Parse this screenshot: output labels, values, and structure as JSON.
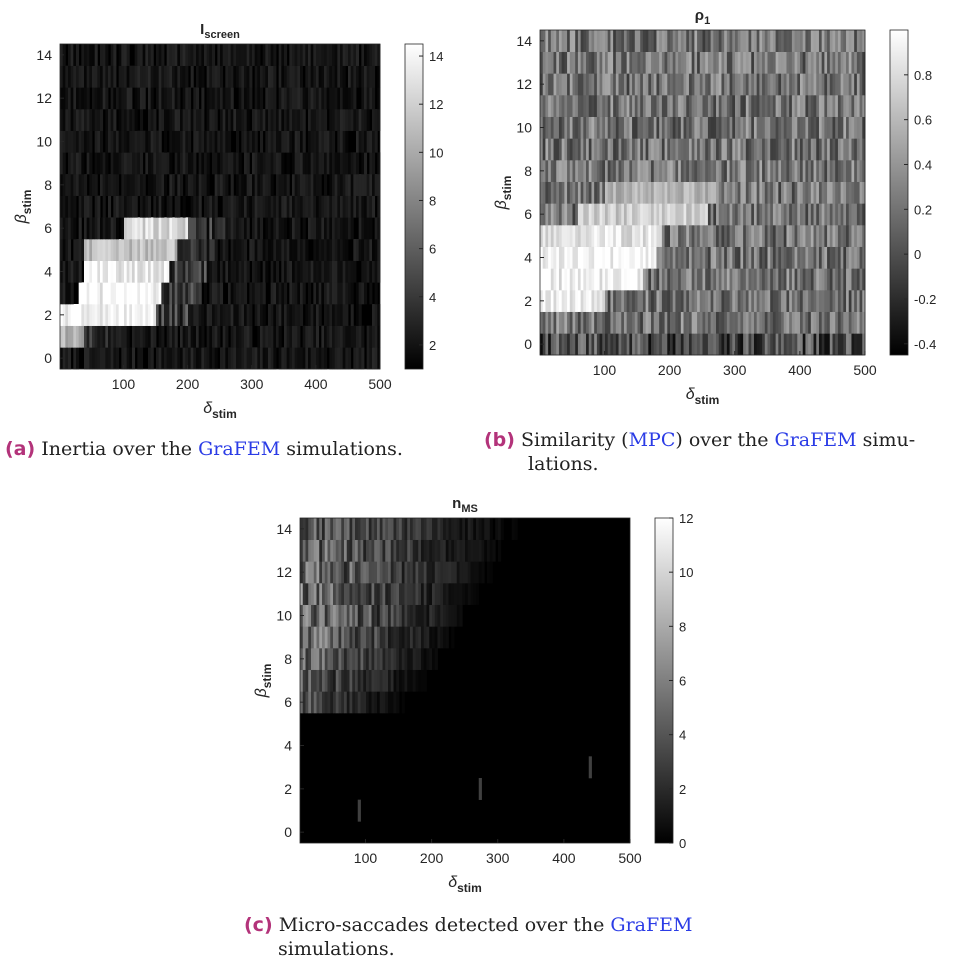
{
  "chart_data": [
    {
      "id": "a",
      "type": "heatmap",
      "title": "I",
      "title_sub": "screen",
      "xlabel": "δ",
      "xlabel_sub": "stim",
      "ylabel": "β",
      "ylabel_sub": "stim",
      "xlim": [
        1,
        500
      ],
      "ylim": [
        -0.5,
        14.5
      ],
      "xticks": [
        100,
        200,
        300,
        400,
        500
      ],
      "yticks": [
        0,
        2,
        4,
        6,
        8,
        10,
        12,
        14
      ],
      "colorbar": {
        "min": 1,
        "max": 14.5,
        "ticks": [
          2,
          4,
          6,
          8,
          10,
          12,
          14
        ],
        "tick_labels": [
          "2",
          "4",
          "6",
          "8",
          "10",
          "12",
          "14"
        ]
      },
      "colormap": "gray",
      "rows": 15,
      "cols": 120,
      "bright_region": [
        {
          "row": 1,
          "from": 1,
          "to": 40,
          "level": 0.7
        },
        {
          "row": 2,
          "from": 1,
          "to": 150,
          "level": 0.97
        },
        {
          "row": 3,
          "from": 30,
          "to": 160,
          "level": 0.97
        },
        {
          "row": 4,
          "from": 40,
          "to": 170,
          "level": 0.95
        },
        {
          "row": 5,
          "from": 40,
          "to": 185,
          "level": 0.75
        },
        {
          "row": 6,
          "from": 100,
          "to": 200,
          "level": 0.85
        }
      ]
    },
    {
      "id": "b",
      "type": "heatmap",
      "title": "ρ",
      "title_sub": "1",
      "xlabel": "δ",
      "xlabel_sub": "stim",
      "ylabel": "β",
      "ylabel_sub": "stim",
      "xlim": [
        1,
        500
      ],
      "ylim": [
        -0.5,
        14.5
      ],
      "xticks": [
        100,
        200,
        300,
        400,
        500
      ],
      "yticks": [
        0,
        2,
        4,
        6,
        8,
        10,
        12,
        14
      ],
      "colorbar": {
        "min": -0.45,
        "max": 1.0,
        "ticks": [
          -0.4,
          -0.2,
          0,
          0.2,
          0.4,
          0.6,
          0.8
        ],
        "tick_labels": [
          "-0.4",
          "-0.2",
          "0",
          "0.2",
          "0.4",
          "0.6",
          "0.8"
        ]
      },
      "colormap": "gray",
      "rows": 15,
      "cols": 120,
      "bright_region": [
        {
          "row": 2,
          "from": 1,
          "to": 100,
          "level": 0.97
        },
        {
          "row": 3,
          "from": 1,
          "to": 160,
          "level": 0.95
        },
        {
          "row": 4,
          "from": 1,
          "to": 180,
          "level": 0.97
        },
        {
          "row": 5,
          "from": 1,
          "to": 190,
          "level": 0.9
        },
        {
          "row": 6,
          "from": 60,
          "to": 260,
          "level": 0.8
        },
        {
          "row": 7,
          "from": 100,
          "to": 270,
          "level": 0.7
        }
      ]
    },
    {
      "id": "c",
      "type": "heatmap",
      "title": "n",
      "title_sub": "MS",
      "xlabel": "δ",
      "xlabel_sub": "stim",
      "ylabel": "β",
      "ylabel_sub": "stim",
      "xlim": [
        1,
        500
      ],
      "ylim": [
        -0.5,
        14.5
      ],
      "xticks": [
        100,
        200,
        300,
        400,
        500
      ],
      "yticks": [
        0,
        2,
        4,
        6,
        8,
        10,
        12,
        14
      ],
      "colorbar": {
        "min": 0,
        "max": 12,
        "ticks": [
          0,
          2,
          4,
          6,
          8,
          10,
          12
        ],
        "tick_labels": [
          "0",
          "2",
          "4",
          "6",
          "8",
          "10",
          "12"
        ]
      },
      "colormap": "gray",
      "rows": 15,
      "cols": 120,
      "bright_region": [
        {
          "row": 6,
          "from": 1,
          "to": 170,
          "level": 0.35
        },
        {
          "row": 7,
          "from": 1,
          "to": 200,
          "level": 0.4
        },
        {
          "row": 8,
          "from": 1,
          "to": 220,
          "level": 0.5
        },
        {
          "row": 9,
          "from": 1,
          "to": 240,
          "level": 0.55
        },
        {
          "row": 10,
          "from": 1,
          "to": 260,
          "level": 0.6
        },
        {
          "row": 11,
          "from": 1,
          "to": 280,
          "level": 0.55
        },
        {
          "row": 12,
          "from": 1,
          "to": 300,
          "level": 0.55
        },
        {
          "row": 13,
          "from": 1,
          "to": 320,
          "level": 0.5
        },
        {
          "row": 14,
          "from": 1,
          "to": 340,
          "level": 0.45
        }
      ]
    }
  ],
  "captions": {
    "a": {
      "tag": "(a)",
      "before": "Inertia over the ",
      "link": "GraFEM",
      "after": " simulations."
    },
    "b": {
      "tag": "(b)",
      "before": "Similarity (",
      "link1": "MPC",
      "middle": ") over the ",
      "link": "GraFEM",
      "after": " simu-",
      "line2": "lations."
    },
    "c": {
      "tag": "(c)",
      "before": "Micro-saccades detected over the ",
      "link": "GraFEM",
      "line2": "simulations."
    }
  }
}
